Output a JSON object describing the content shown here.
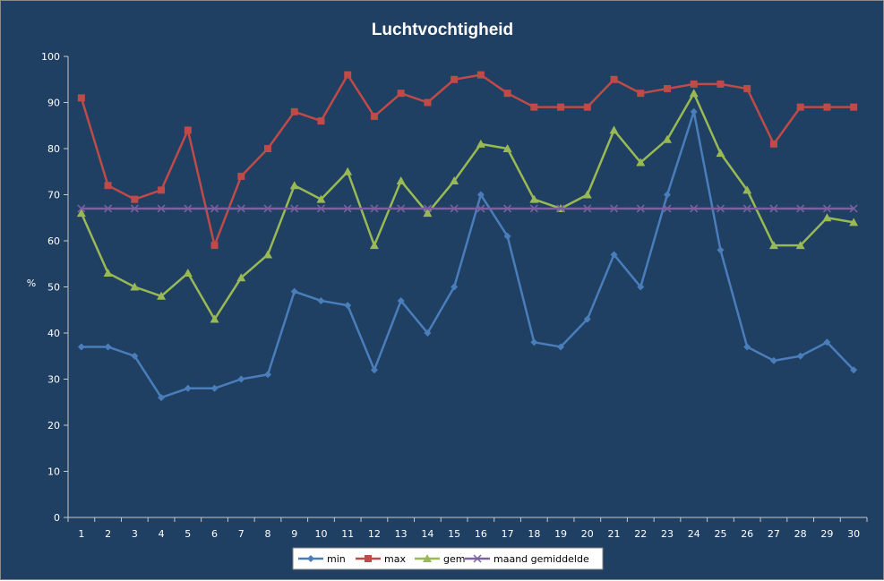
{
  "chart_data": {
    "type": "line",
    "title": "Luchtvochtigheid",
    "xlabel": "",
    "ylabel": "%",
    "ylim": [
      0,
      100
    ],
    "yticks": [
      0,
      10,
      20,
      30,
      40,
      50,
      60,
      70,
      80,
      90,
      100
    ],
    "categories": [
      "1",
      "2",
      "3",
      "4",
      "5",
      "6",
      "7",
      "8",
      "9",
      "10",
      "11",
      "12",
      "13",
      "14",
      "15",
      "16",
      "17",
      "18",
      "19",
      "20",
      "21",
      "22",
      "23",
      "24",
      "25",
      "26",
      "27",
      "28",
      "29",
      "30"
    ],
    "grid": false,
    "legend_position": "bottom",
    "series": [
      {
        "name": "min",
        "color": "#4a7ebb",
        "marker": "diamond",
        "values": [
          37,
          37,
          35,
          26,
          28,
          28,
          30,
          31,
          49,
          47,
          46,
          32,
          47,
          40,
          50,
          70,
          61,
          38,
          37,
          43,
          57,
          50,
          70,
          88,
          58,
          37,
          34,
          35,
          38,
          32
        ]
      },
      {
        "name": "max",
        "color": "#be4b48",
        "marker": "square",
        "values": [
          91,
          72,
          69,
          71,
          84,
          59,
          74,
          80,
          88,
          86,
          96,
          87,
          92,
          90,
          95,
          96,
          92,
          89,
          89,
          89,
          95,
          92,
          93,
          94,
          94,
          93,
          81,
          89,
          89,
          89
        ]
      },
      {
        "name": "gem",
        "color": "#98b954",
        "marker": "triangle",
        "values": [
          66,
          53,
          50,
          48,
          53,
          43,
          52,
          57,
          72,
          69,
          75,
          59,
          73,
          66,
          73,
          81,
          80,
          69,
          67,
          70,
          84,
          77,
          82,
          92,
          79,
          71,
          59,
          59,
          65,
          64
        ]
      },
      {
        "name": "maand gemiddelde",
        "color": "#7d60a0",
        "marker": "x",
        "values": [
          67,
          67,
          67,
          67,
          67,
          67,
          67,
          67,
          67,
          67,
          67,
          67,
          67,
          67,
          67,
          67,
          67,
          67,
          67,
          67,
          67,
          67,
          67,
          67,
          67,
          67,
          67,
          67,
          67,
          67
        ]
      }
    ]
  }
}
